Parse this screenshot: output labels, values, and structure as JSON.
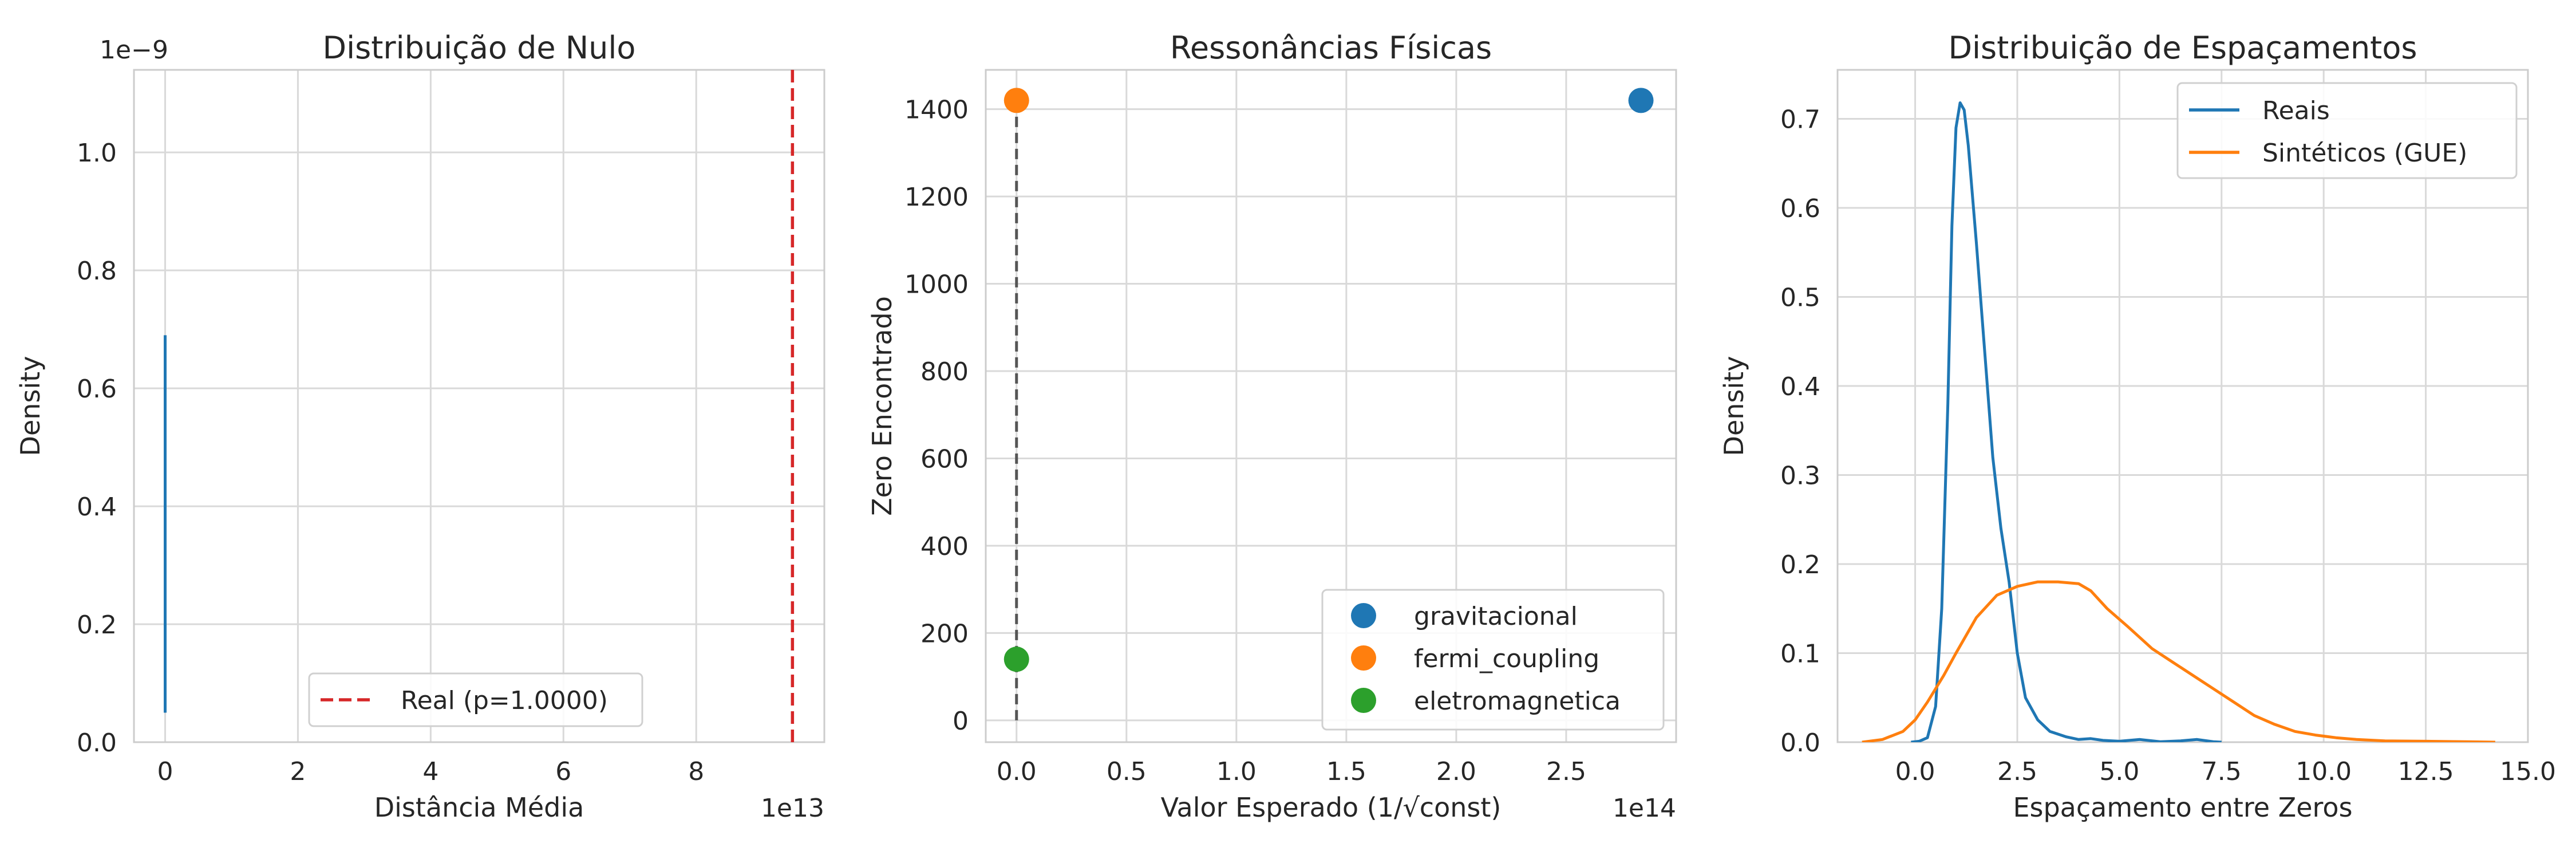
{
  "chart_data": [
    {
      "type": "line",
      "title": "Distribuição de Nulo",
      "xlabel": "Distância Média",
      "ylabel": "Density",
      "x_offset_text": "1e13",
      "y_offset_text": "1e−9",
      "xlim": [
        -0.47,
        9.93
      ],
      "ylim": [
        0,
        1.14
      ],
      "xticks": [
        0,
        2,
        4,
        6,
        8
      ],
      "xtick_labels": [
        "0",
        "2",
        "4",
        "6",
        "8"
      ],
      "yticks": [
        0.0,
        0.2,
        0.4,
        0.6,
        0.8,
        1.0
      ],
      "ytick_labels": [
        "0.0",
        "0.2",
        "0.4",
        "0.6",
        "0.8",
        "1.0"
      ],
      "grid": true,
      "series": [
        {
          "color": "#1f77b4",
          "points": [
            [
              0.0,
              0.05
            ],
            [
              0.0,
              0.69
            ]
          ]
        }
      ],
      "vlines": [
        {
          "x": 9.45,
          "color": "#d62728",
          "style": "dashed",
          "label": "Real (p=1.0000)"
        }
      ],
      "legend": {
        "placement": "lower-center",
        "entries": [
          "Real (p=1.0000)"
        ]
      }
    },
    {
      "type": "scatter",
      "title": "Ressonâncias Físicas",
      "xlabel": "Valor Esperado (1/√const)",
      "ylabel": "Zero Encontrado",
      "x_offset_text": "1e14",
      "xlim": [
        -0.14,
        3.0
      ],
      "ylim": [
        -50,
        1490
      ],
      "xticks": [
        0.0,
        0.5,
        1.0,
        1.5,
        2.0,
        2.5
      ],
      "xtick_labels": [
        "0.0",
        "0.5",
        "1.0",
        "1.5",
        "2.0",
        "2.5"
      ],
      "yticks": [
        0,
        200,
        400,
        600,
        800,
        1000,
        1200,
        1400
      ],
      "ytick_labels": [
        "0",
        "200",
        "400",
        "600",
        "800",
        "1000",
        "1200",
        "1400"
      ],
      "grid": true,
      "series": [
        {
          "name": "gravitacional",
          "color": "#1f77b4",
          "points": [
            [
              2.84,
              1420
            ]
          ]
        },
        {
          "name": "fermi_coupling",
          "color": "#ff7f0e",
          "points": [
            [
              0.0,
              1420
            ]
          ]
        },
        {
          "name": "eletromagnetica",
          "color": "#2ca02c",
          "points": [
            [
              0.0,
              140
            ]
          ]
        }
      ],
      "vline": {
        "x": 0.0,
        "y0": 0,
        "y1": 1420,
        "color": "#555555",
        "style": "dashed"
      },
      "legend": {
        "placement": "lower-right",
        "entries": [
          "gravitacional",
          "fermi_coupling",
          "eletromagnetica"
        ]
      }
    },
    {
      "type": "line",
      "title": "Distribuição de Espaçamentos",
      "xlabel": "Espaçamento entre Zeros",
      "ylabel": "Density",
      "xlim": [
        -1.9,
        15.0
      ],
      "ylim": [
        0,
        0.755
      ],
      "xticks": [
        0.0,
        2.5,
        5.0,
        7.5,
        10.0,
        12.5,
        15.0
      ],
      "xtick_labels": [
        "0.0",
        "2.5",
        "5.0",
        "7.5",
        "10.0",
        "12.5",
        "15.0"
      ],
      "yticks": [
        0.0,
        0.1,
        0.2,
        0.3,
        0.4,
        0.5,
        0.6,
        0.7
      ],
      "ytick_labels": [
        "0.0",
        "0.1",
        "0.2",
        "0.3",
        "0.4",
        "0.5",
        "0.6",
        "0.7"
      ],
      "grid": true,
      "series": [
        {
          "name": "Reais",
          "color": "#1f77b4",
          "points": [
            [
              -0.1,
              0
            ],
            [
              0.1,
              0.001
            ],
            [
              0.3,
              0.005
            ],
            [
              0.5,
              0.04
            ],
            [
              0.65,
              0.15
            ],
            [
              0.8,
              0.38
            ],
            [
              0.9,
              0.58
            ],
            [
              1.0,
              0.69
            ],
            [
              1.1,
              0.718
            ],
            [
              1.2,
              0.71
            ],
            [
              1.3,
              0.67
            ],
            [
              1.5,
              0.56
            ],
            [
              1.7,
              0.44
            ],
            [
              1.9,
              0.32
            ],
            [
              2.1,
              0.24
            ],
            [
              2.3,
              0.18
            ],
            [
              2.5,
              0.1
            ],
            [
              2.7,
              0.05
            ],
            [
              3.0,
              0.025
            ],
            [
              3.3,
              0.012
            ],
            [
              3.7,
              0.006
            ],
            [
              4.0,
              0.003
            ],
            [
              4.3,
              0.004
            ],
            [
              4.6,
              0.002
            ],
            [
              5.0,
              0.001
            ],
            [
              5.5,
              0.003
            ],
            [
              6.0,
              0.0005
            ],
            [
              6.5,
              0.0015
            ],
            [
              6.9,
              0.003
            ],
            [
              7.3,
              0.0005
            ],
            [
              7.5,
              0
            ]
          ]
        },
        {
          "name": "Sintéticos (GUE)",
          "color": "#ff7f0e",
          "points": [
            [
              -1.3,
              0
            ],
            [
              -0.8,
              0.003
            ],
            [
              -0.3,
              0.012
            ],
            [
              0.0,
              0.025
            ],
            [
              0.3,
              0.045
            ],
            [
              0.7,
              0.075
            ],
            [
              1.0,
              0.1
            ],
            [
              1.5,
              0.14
            ],
            [
              2.0,
              0.165
            ],
            [
              2.5,
              0.175
            ],
            [
              3.0,
              0.18
            ],
            [
              3.5,
              0.18
            ],
            [
              4.0,
              0.178
            ],
            [
              4.3,
              0.17
            ],
            [
              4.7,
              0.15
            ],
            [
              5.2,
              0.13
            ],
            [
              5.8,
              0.105
            ],
            [
              6.3,
              0.09
            ],
            [
              6.8,
              0.075
            ],
            [
              7.3,
              0.06
            ],
            [
              7.8,
              0.045
            ],
            [
              8.3,
              0.03
            ],
            [
              8.8,
              0.02
            ],
            [
              9.3,
              0.012
            ],
            [
              9.8,
              0.008
            ],
            [
              10.3,
              0.005
            ],
            [
              10.8,
              0.003
            ],
            [
              11.5,
              0.0015
            ],
            [
              12.5,
              0.001
            ],
            [
              13.5,
              0.0005
            ],
            [
              14.2,
              0
            ]
          ]
        }
      ],
      "legend": {
        "placement": "top-right",
        "entries": [
          "Reais",
          "Sintéticos (GUE)"
        ]
      }
    }
  ]
}
